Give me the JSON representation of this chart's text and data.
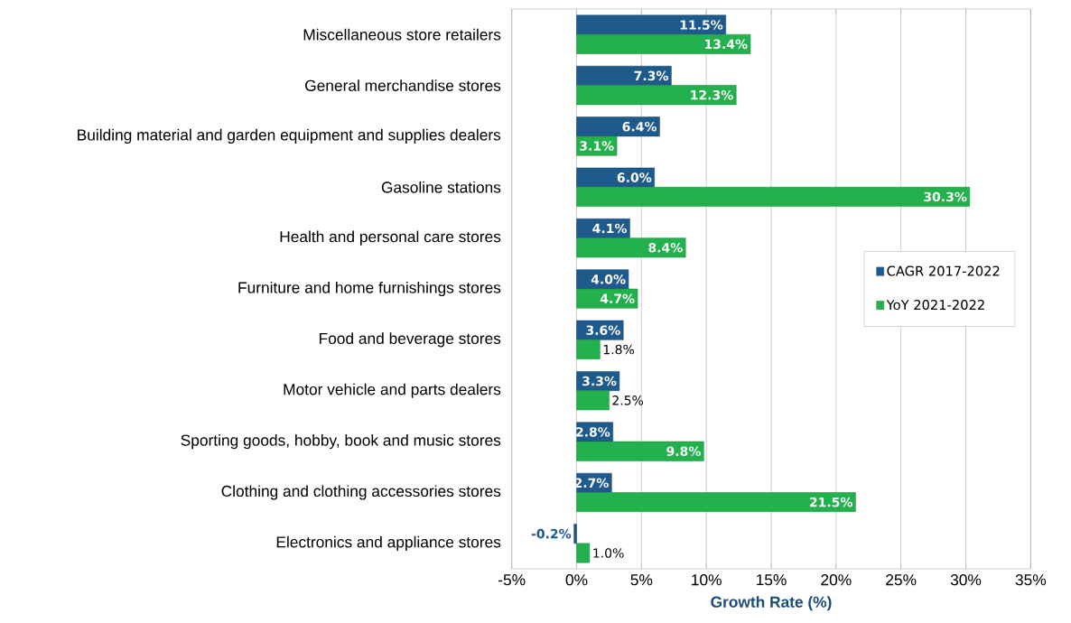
{
  "chart_data": {
    "type": "bar",
    "orientation": "horizontal",
    "xlabel": "Growth Rate (%)",
    "categories": [
      "Miscellaneous store retailers",
      "General merchandise stores",
      "Building material and garden equipment and supplies dealers",
      "Gasoline stations",
      "Health and personal care stores",
      "Furniture and home furnishings stores",
      "Food and beverage stores",
      "Motor vehicle and parts dealers",
      "Sporting goods, hobby, book and music stores",
      "Clothing and clothing accessories stores",
      "Electronics and appliance stores"
    ],
    "series": [
      {
        "name": "CAGR 2017-2022",
        "color": "#1f5a8c",
        "values": [
          11.5,
          7.3,
          6.4,
          6.0,
          4.1,
          4.0,
          3.6,
          3.3,
          2.8,
          2.7,
          -0.2
        ],
        "value_labels": [
          "11.5%",
          "7.3%",
          "6.4%",
          "6.0%",
          "4.1%",
          "4.0%",
          "3.6%",
          "3.3%",
          "2.8%",
          "2.7%",
          "-0.2%"
        ]
      },
      {
        "name": "YoY 2021-2022",
        "color": "#22b14c",
        "values": [
          13.4,
          12.3,
          3.1,
          30.3,
          8.4,
          4.7,
          1.8,
          2.5,
          9.8,
          21.5,
          1.0
        ],
        "value_labels": [
          "13.4%",
          "12.3%",
          "3.1%",
          "30.3%",
          "8.4%",
          "4.7%",
          "1.8%",
          "2.5%",
          "9.8%",
          "21.5%",
          "1.0%"
        ]
      }
    ],
    "xlim": [
      -5,
      35
    ],
    "xticks": [
      {
        "value": -5,
        "label": "-5%"
      },
      {
        "value": 0,
        "label": "0%"
      },
      {
        "value": 5,
        "label": "5%"
      },
      {
        "value": 10,
        "label": "10%"
      },
      {
        "value": 15,
        "label": "15%"
      },
      {
        "value": 20,
        "label": "20%"
      },
      {
        "value": 25,
        "label": "25%"
      },
      {
        "value": 30,
        "label": "30%"
      },
      {
        "value": 35,
        "label": "35%"
      }
    ],
    "grid": "x",
    "legend": "right"
  }
}
